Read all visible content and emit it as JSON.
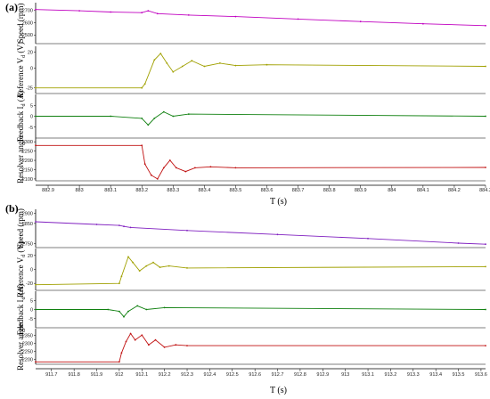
{
  "chart_data": [
    {
      "panel_label": "(a)",
      "type": "line",
      "xlabel": "T (s)",
      "x_ticks": [
        "882.9",
        "883",
        "883.1",
        "883.2",
        "883.3",
        "883.4",
        "883.5",
        "883.6",
        "883.7",
        "883.8",
        "883.9",
        "884",
        "884.1",
        "884.2",
        "884.3"
      ],
      "xlim": [
        882.86,
        884.3
      ],
      "subplots": [
        {
          "ylabel": "Speed (rpm)",
          "color": "#c000c0",
          "ylim": [
            2430,
            2760
          ],
          "y_ticks": [
            "2700",
            "2600",
            "2500"
          ],
          "y_tick_values": [
            2700,
            2600,
            2500
          ],
          "x": [
            882.86,
            883.0,
            883.1,
            883.2,
            883.22,
            883.25,
            883.35,
            883.5,
            883.7,
            883.9,
            884.1,
            884.3
          ],
          "y": [
            2705,
            2695,
            2685,
            2680,
            2695,
            2672,
            2660,
            2648,
            2628,
            2608,
            2590,
            2575
          ]
        },
        {
          "ylabel": "Reference V_d (V)",
          "color": "#a0a000",
          "ylim": [
            -32,
            27
          ],
          "y_ticks": [
            "20",
            "0",
            "-25"
          ],
          "y_tick_values": [
            20,
            0,
            -25
          ],
          "x": [
            882.86,
            883.2,
            883.21,
            883.24,
            883.26,
            883.28,
            883.3,
            883.33,
            883.36,
            883.4,
            883.45,
            883.5,
            883.6,
            884.3
          ],
          "y": [
            -25,
            -25,
            -20,
            10,
            18,
            6,
            -5,
            2,
            9,
            2,
            6,
            3,
            4,
            2
          ]
        },
        {
          "ylabel": "Feedback I_d (A)",
          "color": "#108010",
          "ylim": [
            -10,
            10
          ],
          "y_ticks": [
            "5",
            "0",
            "-5"
          ],
          "y_tick_values": [
            5,
            0,
            -5
          ],
          "x": [
            882.86,
            883.1,
            883.2,
            883.22,
            883.24,
            883.27,
            883.3,
            883.35,
            884.3
          ],
          "y": [
            0,
            0,
            -1,
            -4,
            -1,
            2,
            0,
            1,
            0
          ]
        },
        {
          "ylabel": "Resolver angle",
          "color": "#c01010",
          "ylim": [
            2090,
            2320
          ],
          "y_ticks": [
            "2300",
            "2250",
            "2200",
            "2150",
            "2100"
          ],
          "y_tick_values": [
            2300,
            2250,
            2200,
            2150,
            2100
          ],
          "x": [
            882.86,
            883.2,
            883.21,
            883.23,
            883.25,
            883.27,
            883.29,
            883.31,
            883.34,
            883.37,
            883.42,
            883.5,
            884.3
          ],
          "y": [
            2280,
            2280,
            2180,
            2120,
            2100,
            2160,
            2200,
            2160,
            2140,
            2160,
            2165,
            2160,
            2162
          ]
        }
      ]
    },
    {
      "panel_label": "(b)",
      "type": "line",
      "xlabel": "T (s)",
      "x_ticks": [
        "911.7",
        "911.8",
        "911.9",
        "912",
        "912.1",
        "912.2",
        "912.3",
        "912.4",
        "912.5",
        "912.6",
        "912.7",
        "912.8",
        "912.9",
        "913",
        "913.1",
        "913.2",
        "913.3",
        "913.4",
        "913.5",
        "913.6"
      ],
      "xlim": [
        911.63,
        913.62
      ],
      "subplots": [
        {
          "ylabel": "Speed (rpm)",
          "color": "#8020c0",
          "ylim": [
            2730,
            2920
          ],
          "y_ticks": [
            "2900",
            "2850",
            "2750"
          ],
          "y_tick_values": [
            2900,
            2850,
            2750
          ],
          "x": [
            911.63,
            911.9,
            912.0,
            912.02,
            912.05,
            912.3,
            912.7,
            913.1,
            913.5,
            913.62
          ],
          "y": [
            2858,
            2845,
            2840,
            2835,
            2830,
            2815,
            2795,
            2775,
            2752,
            2747
          ]
        },
        {
          "ylabel": "Reference V_d (V)",
          "color": "#a0a000",
          "ylim": [
            -30,
            30
          ],
          "y_ticks": [
            "20",
            "0",
            "-20"
          ],
          "y_tick_values": [
            20,
            0,
            -20
          ],
          "x": [
            911.63,
            912.0,
            912.01,
            912.04,
            912.06,
            912.09,
            912.12,
            912.15,
            912.18,
            912.22,
            912.3,
            913.62
          ],
          "y": [
            -22,
            -20,
            -10,
            18,
            10,
            -2,
            5,
            10,
            3,
            5,
            2,
            4
          ]
        },
        {
          "ylabel": "Feedback I_d (A)",
          "color": "#108010",
          "ylim": [
            -10,
            10
          ],
          "y_ticks": [
            "5",
            "0",
            "-5"
          ],
          "y_tick_values": [
            5,
            0,
            -5
          ],
          "x": [
            911.63,
            911.95,
            912.0,
            912.02,
            912.04,
            912.08,
            912.12,
            912.2,
            913.62
          ],
          "y": [
            0,
            0,
            -1,
            -4,
            -1,
            2,
            0,
            1,
            0
          ]
        },
        {
          "ylabel": "Resolver angle",
          "color": "#c01010",
          "ylim": [
            2170,
            2390
          ],
          "y_ticks": [
            "2350",
            "2300",
            "2250",
            "2200"
          ],
          "y_tick_values": [
            2350,
            2300,
            2250,
            2200
          ],
          "x": [
            911.63,
            912.0,
            912.01,
            912.03,
            912.05,
            912.07,
            912.1,
            912.13,
            912.16,
            912.2,
            912.25,
            912.3,
            913.62
          ],
          "y": [
            2185,
            2185,
            2240,
            2310,
            2360,
            2320,
            2350,
            2290,
            2320,
            2275,
            2290,
            2285,
            2285
          ]
        }
      ]
    }
  ]
}
